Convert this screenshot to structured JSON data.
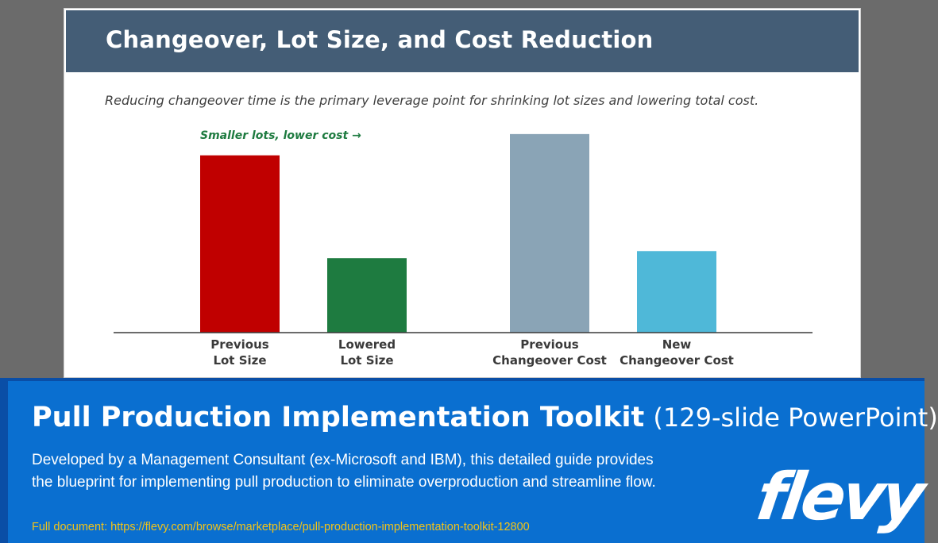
{
  "slide": {
    "title": "Changeover, Lot Size, and Cost Reduction",
    "subtitle": "Reducing changeover time is the primary leverage point for shrinking lot sizes and lowering total cost."
  },
  "chart_data": {
    "type": "bar",
    "annotation": "Smaller lots, lower cost →",
    "categories": [
      [
        "Previous",
        "Lot Size"
      ],
      [
        "Lowered",
        "Lot Size"
      ],
      [
        "Previous",
        "Changeover Cost"
      ],
      [
        "New",
        "Changeover Cost"
      ]
    ],
    "values": [
      100,
      42,
      112,
      46
    ],
    "colors": [
      "#c00000",
      "#1e7b40",
      "#8aa4b6",
      "#4fb8d8"
    ],
    "ylim": [
      0,
      120
    ],
    "grid": false,
    "legend": "none"
  },
  "banner": {
    "title_bold": "Pull Production Implementation Toolkit",
    "title_light": "(129-slide PowerPoint)",
    "description": "Developed by a Management Consultant (ex-Microsoft and IBM), this detailed guide provides the blueprint for implementing pull production to eliminate overproduction and streamline flow.",
    "link": "Full document: https://flevy.com/browse/marketplace/pull-production-implementation-toolkit-12800",
    "logo_text": "flevy"
  },
  "colors": {
    "header": "#445d76",
    "banner": "#0a6fd0",
    "link": "#f2c318",
    "annotation": "#1e7b40"
  }
}
